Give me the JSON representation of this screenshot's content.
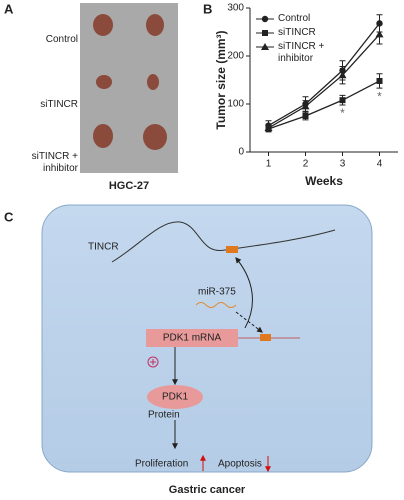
{
  "panel_labels": [
    "A",
    "B",
    "C"
  ],
  "panel_a": {
    "rows": [
      "Control",
      "siTINCR",
      "siTINCR + inhibitor"
    ],
    "caption": "HGC-27"
  },
  "chart_data": {
    "type": "line",
    "ylabel": "Tumor size (mm³)",
    "xlabel": "Weeks",
    "x": [
      1,
      2,
      3,
      4
    ],
    "xlim": [
      0.5,
      4.5
    ],
    "xticks": [
      1,
      2,
      3,
      4
    ],
    "ylim": [
      0,
      300
    ],
    "yticks": [
      0,
      100,
      200,
      300
    ],
    "legend": "upper left",
    "series": [
      {
        "name": "Control",
        "color": "#222222",
        "marker": "circle",
        "values": [
          55,
          100,
          170,
          268
        ],
        "errors": [
          10,
          15,
          20,
          18
        ]
      },
      {
        "name": "siTINCR",
        "color": "#222222",
        "marker": "square",
        "values": [
          48,
          75,
          108,
          148
        ],
        "errors": [
          5,
          8,
          10,
          15
        ]
      },
      {
        "name": "siTINCR + inhibitor",
        "color": "#222222",
        "marker": "triangle",
        "values": [
          50,
          95,
          160,
          245
        ],
        "errors": [
          8,
          12,
          18,
          20
        ]
      }
    ],
    "annotations": [
      {
        "text": "*",
        "x": 3
      },
      {
        "text": "*",
        "x": 4
      }
    ]
  },
  "panel_c": {
    "tincr": "TINCR",
    "mirna": "miR-375",
    "mrna": "PDK1 mRNA",
    "protein_name": "PDK1",
    "protein": "Protein",
    "proliferation": "Proliferation",
    "apoptosis": "Apoptosis",
    "footer": "Gastric cancer"
  }
}
